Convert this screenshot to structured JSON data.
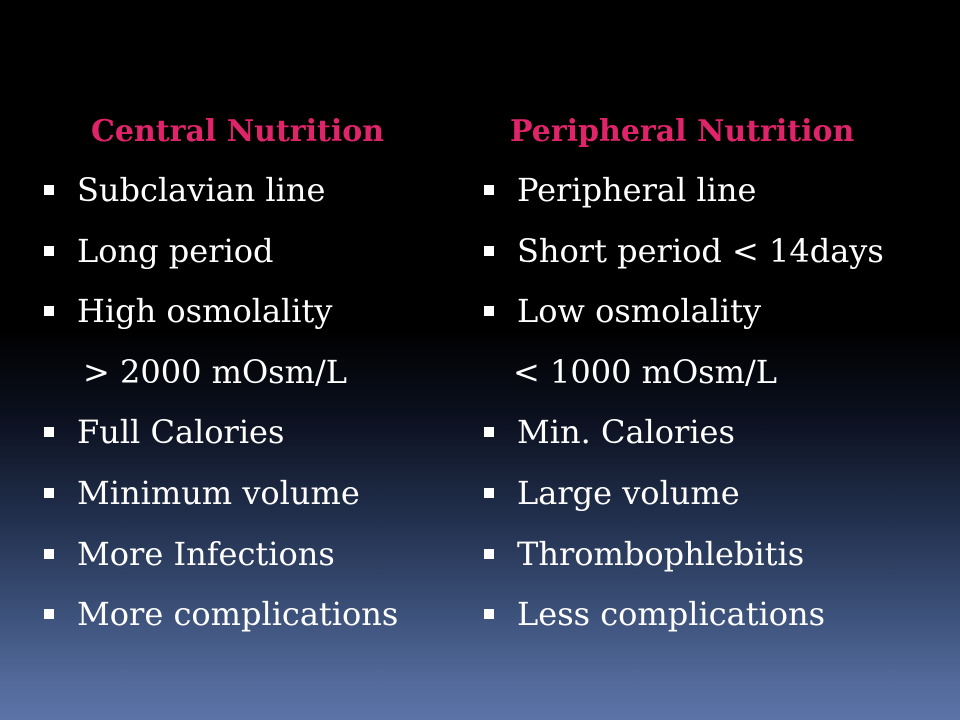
{
  "colors": {
    "heading": "#e0246a",
    "text": "#ffffff",
    "bullet": "#ffffff",
    "background_top": "#000000",
    "background_bottom": "#5b73a6"
  },
  "bullet_icon": "square-bullet-icon",
  "left": {
    "heading": "Central Nutrition",
    "items": [
      {
        "text": "Subclavian line",
        "bullet": true
      },
      {
        "text": "Long period",
        "bullet": true
      },
      {
        "text": "High osmolality",
        "bullet": true
      },
      {
        "text": "> 2000 mOsm/L",
        "bullet": false
      },
      {
        "text": "Full Calories",
        "bullet": true
      },
      {
        "text": "Minimum volume",
        "bullet": true
      },
      {
        "text": "More Infections",
        "bullet": true
      },
      {
        "text": "More complications",
        "bullet": true
      }
    ]
  },
  "right": {
    "heading": "Peripheral Nutrition",
    "items": [
      {
        "text": "Peripheral line",
        "bullet": true
      },
      {
        "text": "Short period < 14days",
        "bullet": true
      },
      {
        "text": "Low osmolality",
        "bullet": true
      },
      {
        "text": "< 1000 mOsm/L",
        "bullet": false
      },
      {
        "text": "Min. Calories",
        "bullet": true
      },
      {
        "text": "Large volume",
        "bullet": true
      },
      {
        "text": "Thrombophlebitis",
        "bullet": true
      },
      {
        "text": "Less complications",
        "bullet": true
      }
    ]
  }
}
